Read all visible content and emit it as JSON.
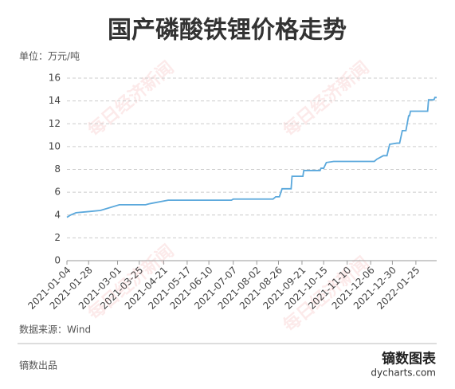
{
  "chart_data": {
    "type": "line",
    "title": "国产磷酸铁锂价格走势",
    "unit_label": "单位：万元/吨",
    "source": "数据来源：Wind",
    "credit": "镝数出品",
    "logo": "镝数图表",
    "logo_url": "dycharts.com",
    "watermark": "每日经济新闻",
    "x": [
      "2021-01-04",
      "2021-01-08",
      "2021-01-14",
      "2021-01-28",
      "2021-02-10",
      "2021-03-03",
      "2021-04-01",
      "2021-04-06",
      "2021-04-26",
      "2021-07-05",
      "2021-07-07",
      "2021-08-20",
      "2021-08-23",
      "2021-08-27",
      "2021-08-30",
      "2021-09-09",
      "2021-09-10",
      "2021-09-22",
      "2021-09-23",
      "2021-10-11",
      "2021-10-12",
      "2021-10-15",
      "2021-10-18",
      "2021-10-26",
      "2021-12-10",
      "2021-12-13",
      "2021-12-20",
      "2021-12-24",
      "2021-12-27",
      "2022-01-04",
      "2022-01-07",
      "2022-01-10",
      "2022-01-14",
      "2022-01-17",
      "2022-01-18",
      "2022-01-19",
      "2022-02-07",
      "2022-02-08",
      "2022-02-14",
      "2022-02-15",
      "2022-02-17"
    ],
    "series": [
      {
        "name": "磷酸铁锂",
        "color": "#5aa8dc",
        "values": [
          3.8,
          4.0,
          4.2,
          4.3,
          4.4,
          4.9,
          4.9,
          5.0,
          5.3,
          5.3,
          5.4,
          5.4,
          5.6,
          5.6,
          6.3,
          6.3,
          7.4,
          7.4,
          7.9,
          7.9,
          8.1,
          8.1,
          8.6,
          8.7,
          8.7,
          8.9,
          9.2,
          9.2,
          10.2,
          10.3,
          10.3,
          11.4,
          11.4,
          12.7,
          12.7,
          13.1,
          13.1,
          14.1,
          14.1,
          14.3,
          14.3
        ]
      }
    ],
    "xlim": [
      "2021-01-04",
      "2022-02-17"
    ],
    "xticks": [
      "2021-01-04",
      "2021-01-28",
      "2021-03-01",
      "2021-03-25",
      "2021-04-21",
      "2021-05-17",
      "2021-06-10",
      "2021-07-07",
      "2021-08-02",
      "2021-08-26",
      "2021-09-21",
      "2021-10-15",
      "2021-11-10",
      "2021-12-06",
      "2021-12-30",
      "2022-01-25"
    ],
    "ylim": [
      0,
      16
    ],
    "yticks": [
      0,
      2,
      4,
      6,
      8,
      10,
      12,
      14,
      16
    ],
    "grid": true
  }
}
